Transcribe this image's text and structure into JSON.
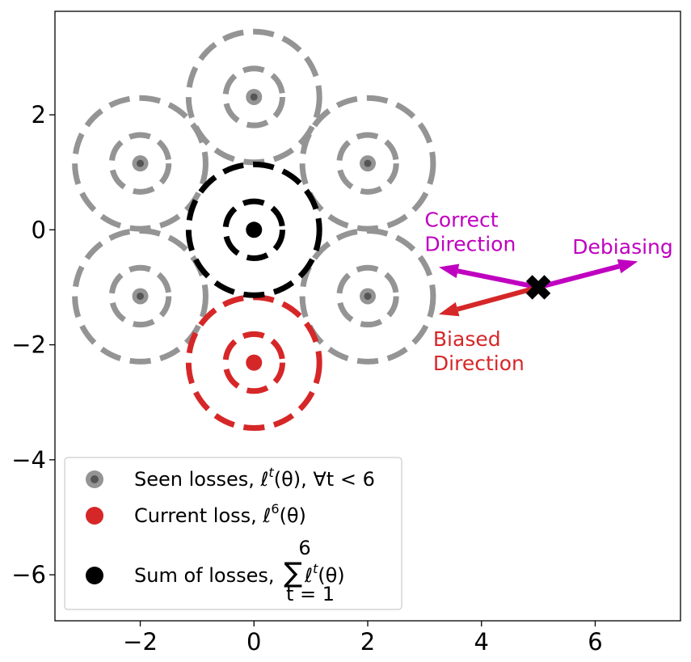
{
  "chart_data": {
    "type": "scatter",
    "title": "",
    "xlabel": "",
    "ylabel": "",
    "xlim": [
      -3.5,
      7.5
    ],
    "ylim": [
      -6.8,
      3.8
    ],
    "xticks": [
      -2,
      0,
      2,
      4,
      6
    ],
    "yticks": [
      -6,
      -4,
      -2,
      0,
      2
    ],
    "xtick_labels": [
      "−2",
      "0",
      "2",
      "4",
      "6"
    ],
    "ytick_labels": [
      "−6",
      "−4",
      "−2",
      "0",
      "2"
    ],
    "grid": false,
    "legend_position": "lower-left",
    "ring_radii": [
      0.5,
      1.15
    ],
    "seen_losses": {
      "color": "#949494",
      "centers": [
        {
          "x": 0,
          "y": 2.31
        },
        {
          "x": 2,
          "y": 1.155
        },
        {
          "x": 2,
          "y": -1.155
        },
        {
          "x": -2,
          "y": -1.155
        },
        {
          "x": -2,
          "y": 1.155
        }
      ]
    },
    "current_loss": {
      "color": "#d62728",
      "center": {
        "x": 0,
        "y": -2.31
      }
    },
    "sum_of_losses": {
      "color": "#000000",
      "center": {
        "x": 0,
        "y": 0
      }
    },
    "point_theta": {
      "x": 5,
      "y": -1.0,
      "marker": "X",
      "color": "#000000"
    },
    "arrows": [
      {
        "from": {
          "x": 5,
          "y": -1.0
        },
        "to": {
          "x": 3.25,
          "y": -0.65
        },
        "color": "#c000c0"
      },
      {
        "from": {
          "x": 5,
          "y": -1.0
        },
        "to": {
          "x": 3.25,
          "y": -1.47
        },
        "color": "#d62728"
      },
      {
        "from": {
          "x": 5,
          "y": -1.0
        },
        "to": {
          "x": 6.75,
          "y": -0.55
        },
        "color": "#c000c0"
      }
    ],
    "annotations": [
      {
        "lines": [
          "Correct",
          "Direction"
        ],
        "x": 3.0,
        "y": 0.05,
        "color": "#c000c0"
      },
      {
        "lines": [
          "Debiasing"
        ],
        "x": 5.6,
        "y": -0.42,
        "color": "#c000c0"
      },
      {
        "lines": [
          "Biased",
          "Direction"
        ],
        "x": 3.15,
        "y": -2.02,
        "color": "#d62728"
      }
    ],
    "legend": [
      {
        "prefix": "Seen losses, ",
        "math": "ℓ",
        "sup": "t",
        "arg": "(θ), ∀t < 6",
        "color": "#949494"
      },
      {
        "prefix": "Current loss, ",
        "math": "ℓ",
        "sup": "6",
        "arg": "(θ)",
        "color": "#d62728"
      },
      {
        "prefix": "Sum of losses, ",
        "sum_top": "6",
        "sum_bottom": "t = 1",
        "math": "ℓ",
        "sup": "t",
        "arg": "(θ)",
        "color": "#000000"
      }
    ]
  }
}
